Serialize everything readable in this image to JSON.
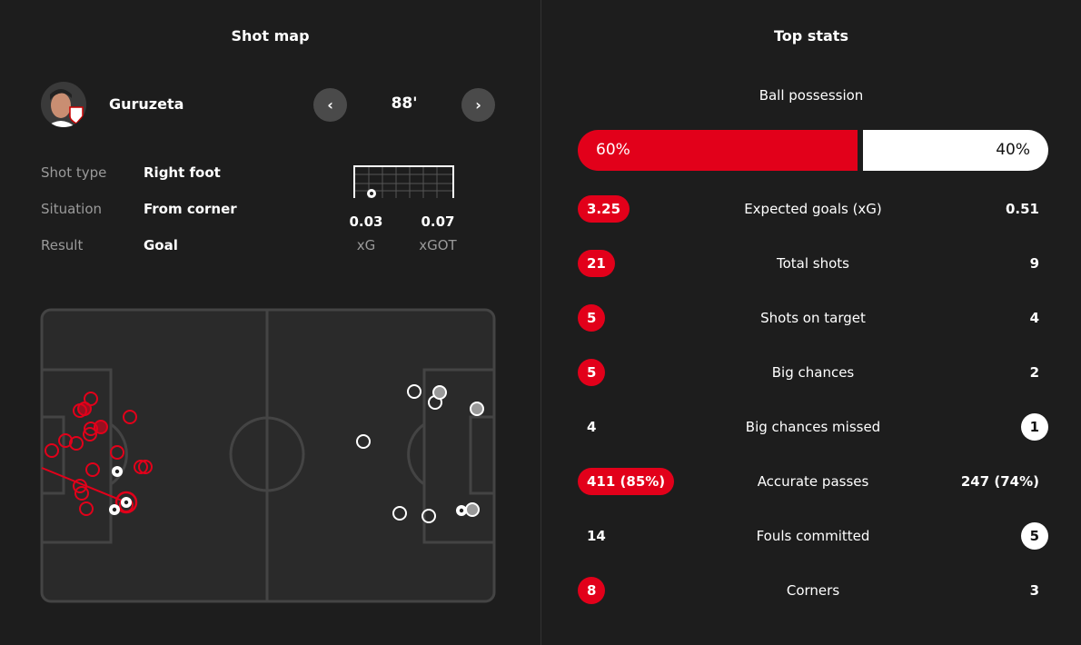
{
  "shot_map": {
    "title": "Shot map",
    "player": "Guruzeta",
    "minute": "88'",
    "details": [
      {
        "label": "Shot type",
        "value": "Right foot"
      },
      {
        "label": "Situation",
        "value": "From corner"
      },
      {
        "label": "Result",
        "value": "Goal"
      }
    ],
    "xg": {
      "value": "0.03",
      "label": "xG"
    },
    "xgot": {
      "value": "0.07",
      "label": "xGOT"
    },
    "colors": {
      "home": "#e2001a",
      "away": "#ffffff"
    }
  },
  "top_stats": {
    "title": "Top stats",
    "possession": {
      "label": "Ball possession",
      "home": "60%",
      "away": "40%",
      "home_fraction": 0.6
    },
    "rows": [
      {
        "label": "Expected goals (xG)",
        "home": "3.25",
        "away": "0.51",
        "highlight": "home"
      },
      {
        "label": "Total shots",
        "home": "21",
        "away": "9",
        "highlight": "home"
      },
      {
        "label": "Shots on target",
        "home": "5",
        "away": "4",
        "highlight": "home"
      },
      {
        "label": "Big chances",
        "home": "5",
        "away": "2",
        "highlight": "home"
      },
      {
        "label": "Big chances missed",
        "home": "4",
        "away": "1",
        "highlight": "away"
      },
      {
        "label": "Accurate passes",
        "home": "411 (85%)",
        "away": "247 (74%)",
        "highlight": "home"
      },
      {
        "label": "Fouls committed",
        "home": "14",
        "away": "5",
        "highlight": "away"
      },
      {
        "label": "Corners",
        "home": "8",
        "away": "3",
        "highlight": "home"
      }
    ]
  }
}
